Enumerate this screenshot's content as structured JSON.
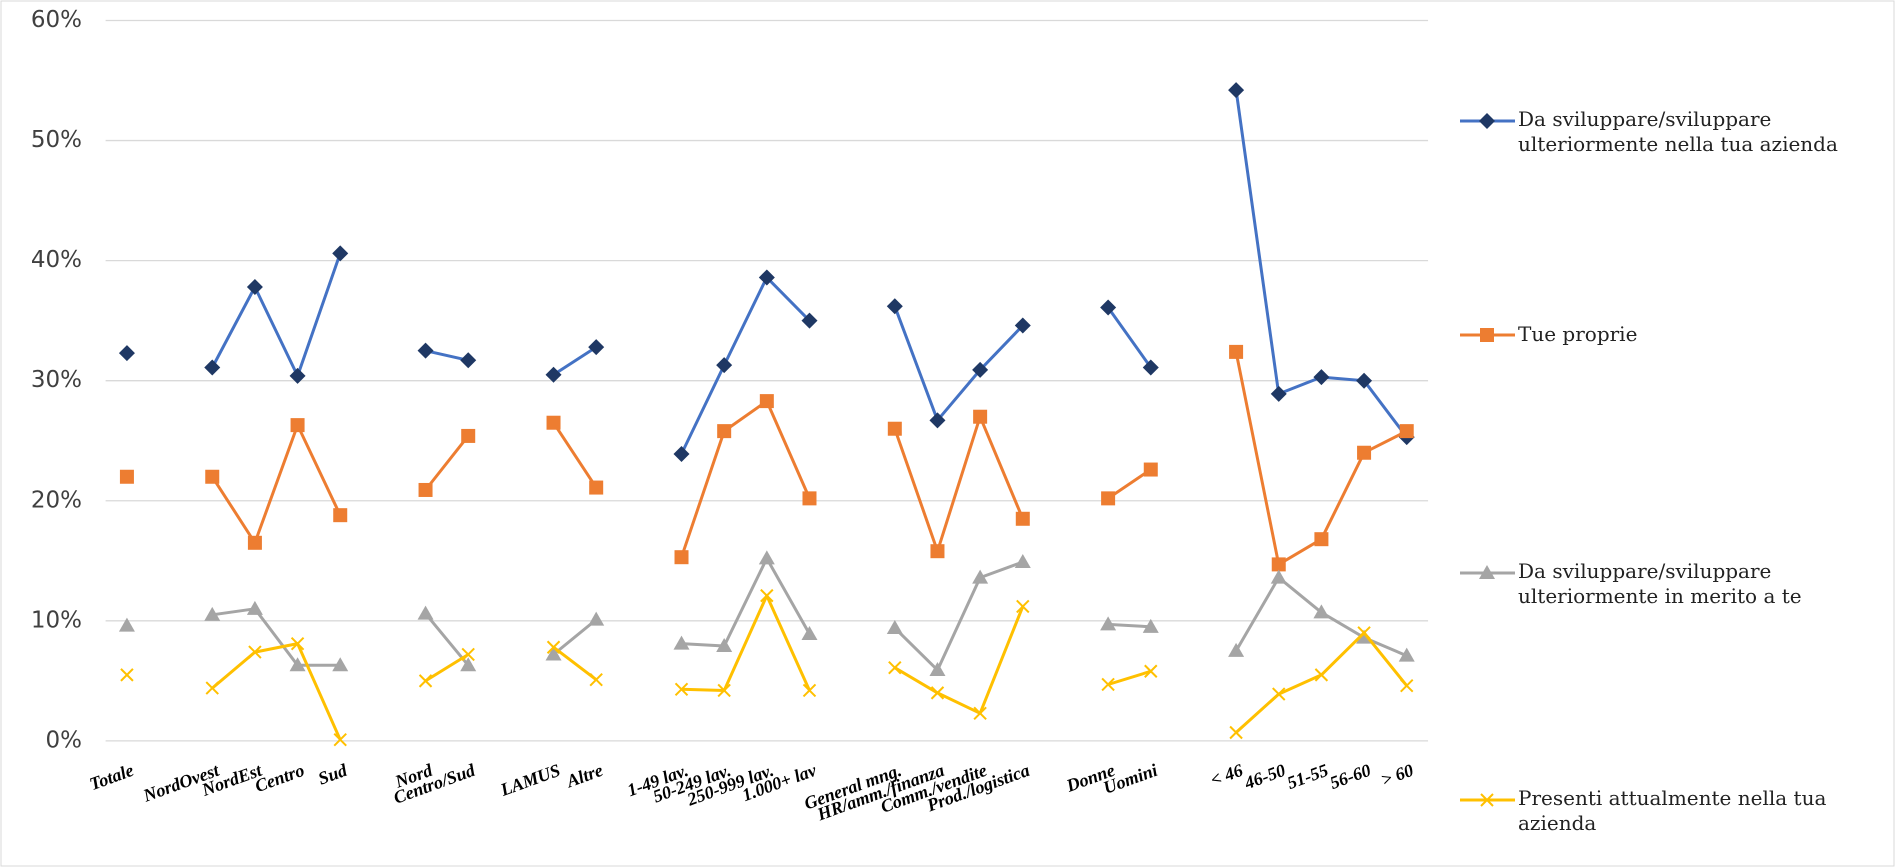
{
  "chart_data": {
    "type": "line",
    "categories": [
      "Totale",
      null,
      "NordOvest",
      "NordEst",
      "Centro",
      "Sud",
      null,
      "Nord",
      "Centro/Sud",
      null,
      "LAMUS",
      "Altre",
      null,
      "1-49 lav.",
      "50-249 lav.",
      "250-999 lav.",
      "1.000+ lav",
      null,
      "General mng.",
      "HR/amm./finanza",
      "Comm./vendite",
      "Prod./logistica",
      null,
      "Donne",
      "Uomini",
      null,
      "< 46",
      "46-50",
      "51-55",
      "56-60",
      "> 60"
    ],
    "series": [
      {
        "name": "Da sviluppare/sviluppare ulteriormente nella tua azienda",
        "color": "#4472c4",
        "marker": "diamond",
        "marker_color": "#1f3864",
        "values": [
          32.3,
          null,
          31.1,
          37.8,
          30.4,
          40.6,
          null,
          32.5,
          31.7,
          null,
          30.5,
          32.8,
          null,
          23.9,
          31.3,
          38.6,
          35.0,
          null,
          36.2,
          26.7,
          30.9,
          34.6,
          null,
          36.1,
          31.1,
          null,
          54.2,
          28.9,
          30.3,
          30.0,
          25.3
        ]
      },
      {
        "name": "Tue proprie",
        "color": "#ed7d31",
        "marker": "square",
        "marker_color": "#ed7d31",
        "values": [
          22.0,
          null,
          22.0,
          16.5,
          26.3,
          18.8,
          null,
          20.9,
          25.4,
          null,
          26.5,
          21.1,
          null,
          15.3,
          25.8,
          28.3,
          20.2,
          null,
          26.0,
          15.8,
          27.0,
          18.5,
          null,
          20.2,
          22.6,
          null,
          32.4,
          14.7,
          16.8,
          24.0,
          25.8
        ]
      },
      {
        "name": "Da sviluppare/sviluppare ulteriormente in merito a te",
        "color": "#a5a5a5",
        "marker": "triangle",
        "marker_color": "#a5a5a5",
        "values": [
          9.6,
          null,
          10.5,
          11.0,
          6.3,
          6.3,
          null,
          10.6,
          6.3,
          null,
          7.2,
          10.1,
          null,
          8.1,
          7.9,
          15.2,
          8.9,
          null,
          9.4,
          5.9,
          13.6,
          14.9,
          null,
          9.7,
          9.5,
          null,
          7.5,
          13.6,
          10.7,
          8.6,
          7.1
        ]
      },
      {
        "name": "Presenti attualmente nella tua azienda",
        "color": "#ffc000",
        "marker": "x",
        "marker_color": "#ffc000",
        "values": [
          5.5,
          null,
          4.4,
          7.4,
          8.1,
          0.1,
          null,
          5.0,
          7.2,
          null,
          7.8,
          5.1,
          null,
          4.3,
          4.2,
          12.1,
          4.2,
          null,
          6.1,
          4.0,
          2.3,
          11.2,
          null,
          4.7,
          5.8,
          null,
          0.7,
          3.9,
          5.5,
          9.0,
          4.6
        ]
      }
    ],
    "ylim": [
      0,
      60
    ],
    "yticks": [
      {
        "value": 0,
        "label": "0%"
      },
      {
        "value": 10,
        "label": "10%"
      },
      {
        "value": 20,
        "label": "20%"
      },
      {
        "value": 30,
        "label": "30%"
      },
      {
        "value": 40,
        "label": "40%"
      },
      {
        "value": 50,
        "label": "50%"
      },
      {
        "value": 60,
        "label": "60%"
      }
    ],
    "grid": true,
    "legend": "right"
  }
}
